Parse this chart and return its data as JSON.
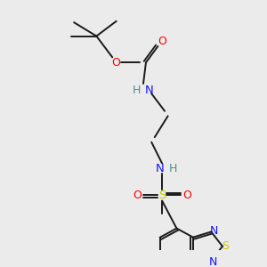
{
  "bg_color": "#ebebeb",
  "bond_color": "#1a1a1a",
  "N_color": "#1414ff",
  "N_color2": "#4a9090",
  "O_color": "#ff0000",
  "S_color": "#cccc00",
  "figsize": [
    3.0,
    3.0
  ],
  "dpi": 100,
  "xlim": [
    0,
    10
  ],
  "ylim": [
    0,
    10
  ]
}
